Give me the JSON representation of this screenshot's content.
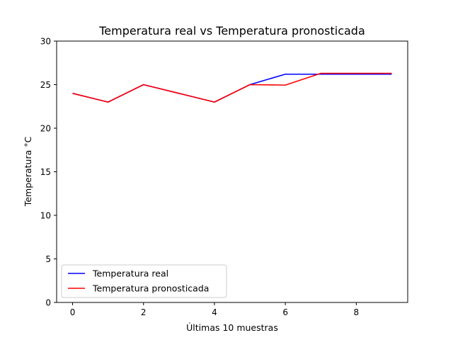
{
  "chart_data": {
    "type": "line",
    "title": "Temperatura real vs Temperatura pronosticada",
    "xlabel": "Últimas 10 muestras",
    "ylabel": "Temperatura °C",
    "x": [
      0,
      1,
      2,
      3,
      4,
      5,
      6,
      7,
      8,
      9
    ],
    "xlim": [
      -0.45,
      9.45
    ],
    "ylim": [
      0,
      30
    ],
    "xticks": [
      0,
      2,
      4,
      6,
      8
    ],
    "yticks": [
      0,
      5,
      10,
      15,
      20,
      25,
      30
    ],
    "grid": false,
    "legend_position": "lower-left",
    "series": [
      {
        "name": "Temperatura real",
        "color": "#0000ff",
        "values": [
          24.0,
          23.0,
          25.0,
          24.0,
          23.0,
          25.0,
          26.2,
          26.2,
          26.2,
          26.2
        ]
      },
      {
        "name": "Temperatura pronosticada",
        "color": "#ff0000",
        "values": [
          24.0,
          23.0,
          25.0,
          24.0,
          23.0,
          25.0,
          24.95,
          26.3,
          26.3,
          26.3
        ]
      }
    ]
  }
}
